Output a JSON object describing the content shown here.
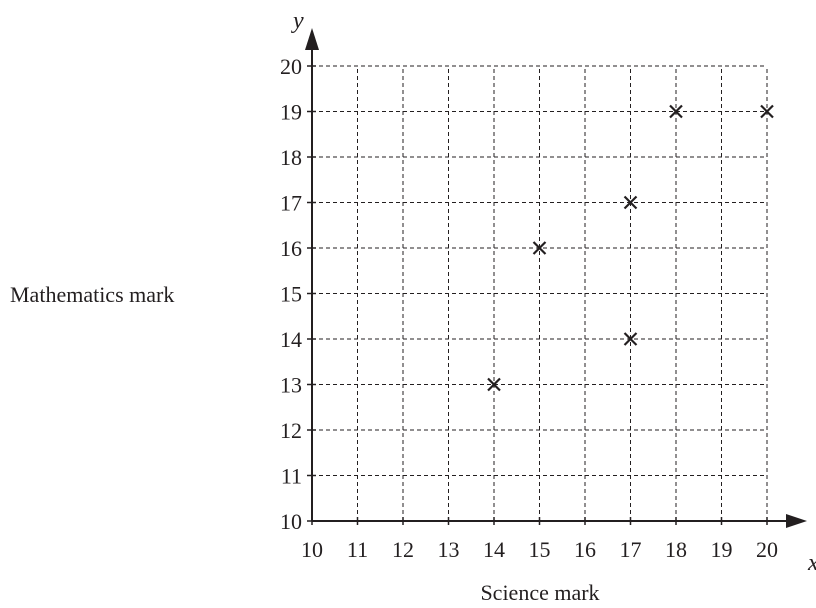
{
  "chart_data": {
    "type": "scatter",
    "title": "",
    "xlabel": "Science mark",
    "ylabel": "Mathematics mark",
    "x_axis_symbol": "y",
    "y_axis_symbol": "y",
    "x_axis_end_symbol": "x",
    "xlim": [
      10,
      20
    ],
    "ylim": [
      10,
      20
    ],
    "x_ticks": [
      "10",
      "11",
      "12",
      "13",
      "14",
      "15",
      "16",
      "17",
      "18",
      "19",
      "20"
    ],
    "y_ticks": [
      "10",
      "11",
      "12",
      "13",
      "14",
      "15",
      "16",
      "17",
      "18",
      "19",
      "20"
    ],
    "grid": true,
    "grid_style": "dashed",
    "marker": "cross",
    "points": [
      {
        "x": 14,
        "y": 13
      },
      {
        "x": 15,
        "y": 16
      },
      {
        "x": 17,
        "y": 17
      },
      {
        "x": 17,
        "y": 14
      },
      {
        "x": 18,
        "y": 19
      },
      {
        "x": 20,
        "y": 19
      }
    ],
    "colors": {
      "ink": "#231f20",
      "background": "#ffffff"
    }
  }
}
